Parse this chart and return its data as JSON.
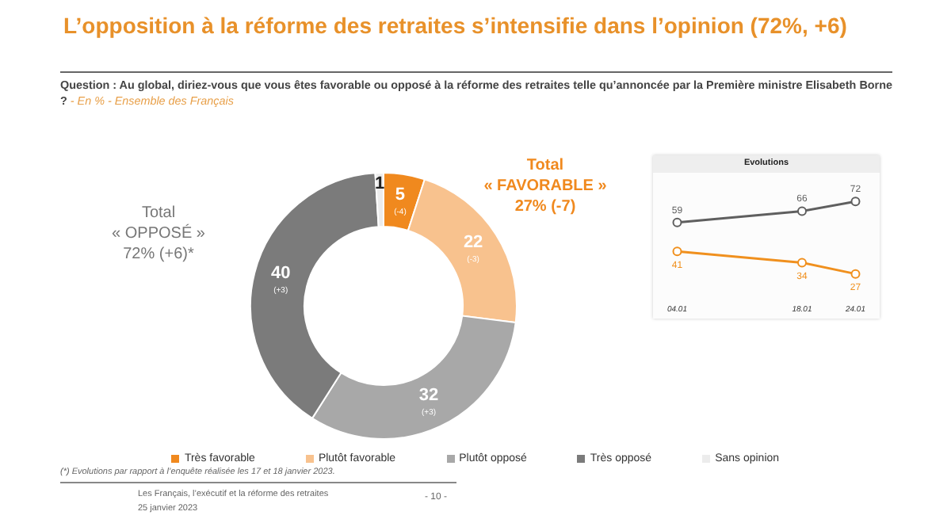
{
  "chart_data": [
    {
      "type": "donut",
      "title": "L’opposition à la réforme des retraites s’intensifie dans l’opinion (72%, +6)",
      "subtitle": "Question : Au global, diriez-vous que vous êtes favorable ou opposé à la réforme des retraites telle qu’annoncée par la Première ministre Elisabeth Borne ?",
      "categories": [
        "Très favorable",
        "Plutôt favorable",
        "Plutôt opposé",
        "Très opposé",
        "Sans opinion"
      ],
      "values": [
        5,
        22,
        32,
        40,
        1
      ],
      "value_labels": [
        "5 (-4)",
        "22 (-3)",
        "32 (+3)",
        "40 (+3)",
        "1"
      ],
      "colors": [
        "#f0891e",
        "#f8c28e",
        "#a8a8a8",
        "#7b7b7b",
        "#ececec"
      ],
      "legend": "bottom",
      "annotations": [
        "- En % - Ensemble des Français",
        "Total « FAVORABLE » 27% (-7)",
        "Total « OPPOSÉ » 72% (+6)*",
        "(*) Evolutions par rapport à l’enquête réalisée les 17 et 18 janvier 2023.",
        "Les Français, l’exécutif et la réforme des retraites",
        "25 janvier 2023",
        "- 10 -"
      ]
    },
    {
      "type": "line",
      "title": "Evolutions",
      "x": [
        "--01-04",
        "--01-18",
        "--01-24"
      ],
      "xlim": [
        "--01-02",
        "--01-26"
      ],
      "xticks": [
        {
          "value": "--01-04",
          "label": "04.01"
        },
        {
          "value": "--01-18",
          "label": "18.01"
        },
        {
          "value": "--01-24",
          "label": "24.01"
        }
      ],
      "series": [
        {
          "color": "#5f5f5f",
          "values": [
            59,
            66,
            72
          ]
        },
        {
          "color": "#f0901e",
          "values": [
            41,
            34,
            27
          ]
        }
      ],
      "data_labels": true,
      "marker": "circle",
      "line_style": "solid"
    }
  ]
}
